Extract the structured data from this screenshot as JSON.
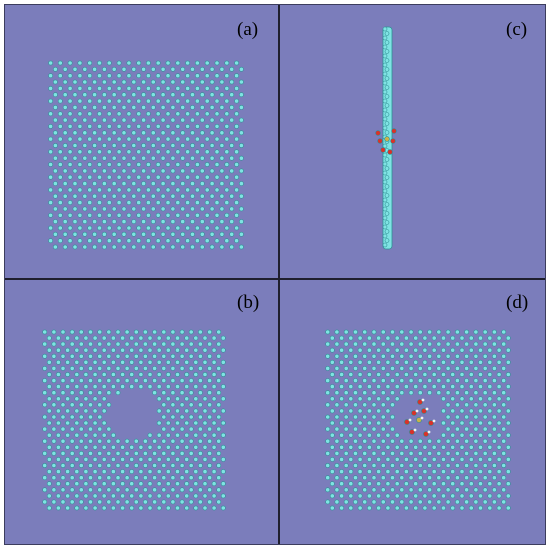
{
  "panels": [
    {
      "id": "a",
      "label": "(a)",
      "view": "top",
      "lattice": "pristine"
    },
    {
      "id": "c",
      "label": "(c)",
      "view": "side",
      "lattice": "defect-with-adsorbate"
    },
    {
      "id": "b",
      "label": "(b)",
      "view": "top",
      "lattice": "circular-vacancy"
    },
    {
      "id": "d",
      "label": "(d)",
      "view": "top",
      "lattice": "vacancy-with-adsorbate"
    }
  ],
  "colors": {
    "background": "#7b7dbb",
    "atom": "#7fe3e3",
    "atom_dark": "#2f8f94",
    "oxygen": "#d8322a",
    "hydrogen": "#f2f2f2",
    "center": "#c9b24a"
  }
}
